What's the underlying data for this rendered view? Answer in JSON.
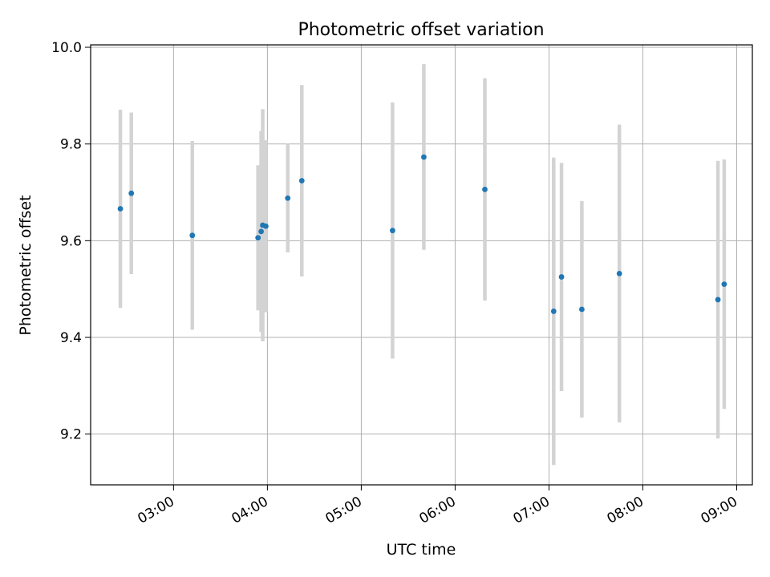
{
  "chart_data": {
    "type": "scatter",
    "title": "Photometric offset variation",
    "xlabel": "UTC time",
    "ylabel": "Photometric offset",
    "x_axis": {
      "type": "time",
      "range": [
        "02:07",
        "09:10"
      ],
      "ticks": [
        "03:00",
        "04:00",
        "05:00",
        "06:00",
        "07:00",
        "08:00",
        "09:00"
      ]
    },
    "y_axis": {
      "range": [
        9.095,
        10.005
      ],
      "ticks": [
        "9.2",
        "9.4",
        "9.6",
        "9.8",
        "10.0"
      ]
    },
    "grid": true,
    "colors": {
      "points": "#1f77b4",
      "error_bars": "#d3d3d3",
      "grid": "#b0b0b0"
    },
    "points": [
      {
        "x": "02:26",
        "y": 9.666,
        "yerr": 0.205
      },
      {
        "x": "02:33",
        "y": 9.698,
        "yerr": 0.167
      },
      {
        "x": "03:12",
        "y": 9.611,
        "yerr": 0.195
      },
      {
        "x": "03:54",
        "y": 9.606,
        "yerr": 0.15
      },
      {
        "x": "03:56",
        "y": 9.619,
        "yerr": 0.208
      },
      {
        "x": "03:57",
        "y": 9.632,
        "yerr": 0.24
      },
      {
        "x": "03:59",
        "y": 9.63,
        "yerr": 0.178
      },
      {
        "x": "04:13",
        "y": 9.688,
        "yerr": 0.112
      },
      {
        "x": "04:22",
        "y": 9.724,
        "yerr": 0.198
      },
      {
        "x": "05:20",
        "y": 9.621,
        "yerr": 0.265
      },
      {
        "x": "05:40",
        "y": 9.773,
        "yerr": 0.192
      },
      {
        "x": "06:19",
        "y": 9.706,
        "yerr": 0.23
      },
      {
        "x": "07:03",
        "y": 9.454,
        "yerr": 0.318
      },
      {
        "x": "07:08",
        "y": 9.525,
        "yerr": 0.236
      },
      {
        "x": "07:21",
        "y": 9.458,
        "yerr": 0.224
      },
      {
        "x": "07:45",
        "y": 9.532,
        "yerr": 0.308
      },
      {
        "x": "08:48",
        "y": 9.478,
        "yerr": 0.287
      },
      {
        "x": "08:52",
        "y": 9.51,
        "yerr": 0.258
      }
    ]
  }
}
